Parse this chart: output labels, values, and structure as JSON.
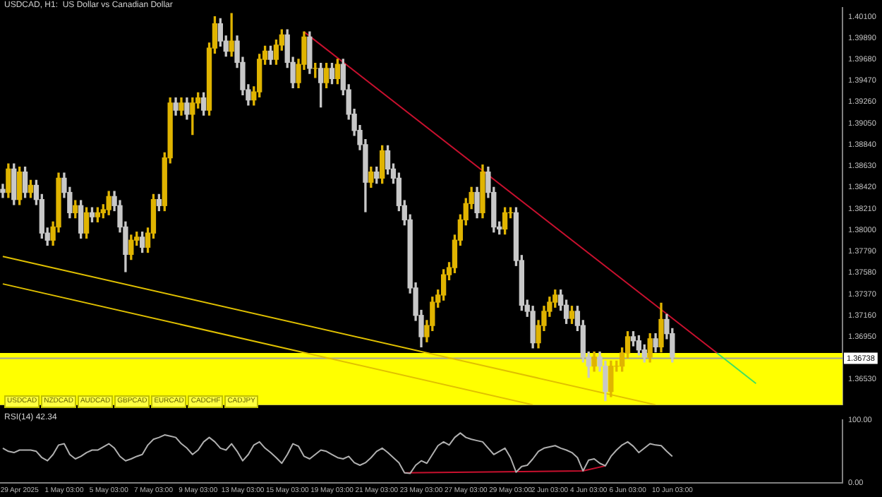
{
  "chart_data": [
    {
      "type": "candlestick",
      "title": "USDCAD, H1:  US Dollar vs Canadian Dollar",
      "categories": [
        null,
        null,
        null,
        null,
        null,
        null,
        null,
        null,
        null,
        null,
        null,
        null,
        null,
        null,
        null,
        null,
        null,
        null,
        null,
        null,
        null,
        null,
        null,
        null,
        null,
        null,
        null,
        null,
        null,
        null,
        null,
        null,
        null,
        null,
        null,
        null,
        null,
        null,
        null,
        null,
        null,
        null,
        null,
        null,
        null,
        null,
        null,
        null,
        null,
        null,
        null,
        null,
        null,
        null,
        null,
        null,
        null,
        null,
        null,
        null,
        null,
        null,
        null,
        null,
        null,
        null,
        null,
        null,
        null,
        null,
        null,
        null,
        null,
        null,
        null,
        null,
        null,
        null,
        null,
        null,
        null,
        null,
        null,
        null,
        null,
        null,
        null,
        null,
        null,
        null,
        null,
        null,
        null,
        null,
        null,
        null,
        null,
        null,
        null,
        null,
        null,
        null,
        null,
        null,
        null,
        null,
        null,
        null,
        null,
        null,
        null,
        null,
        null,
        null,
        null,
        null,
        null,
        null,
        null,
        null,
        null,
        null,
        null,
        null,
        null,
        null,
        null,
        null,
        null,
        null,
        null,
        null,
        null,
        null,
        null,
        null,
        null,
        null,
        null,
        null,
        null,
        null,
        null,
        null,
        null,
        null,
        null,
        null,
        null,
        null,
        null
      ],
      "ohlc": [
        [
          1.384,
          1.3845,
          1.3832,
          1.3837
        ],
        [
          1.3837,
          1.3865,
          1.3832,
          1.386
        ],
        [
          1.386,
          1.3865,
          1.3825,
          1.383
        ],
        [
          1.383,
          1.3862,
          1.3825,
          1.3857
        ],
        [
          1.3857,
          1.3862,
          1.3832,
          1.3837
        ],
        [
          1.3837,
          1.3849,
          1.3832,
          1.3844
        ],
        [
          1.3844,
          1.3849,
          1.3825,
          1.383
        ],
        [
          1.383,
          1.3835,
          1.3792,
          1.3797
        ],
        [
          1.3797,
          1.3802,
          1.3785,
          1.379
        ],
        [
          1.379,
          1.3808,
          1.3785,
          1.3803
        ],
        [
          1.3803,
          1.3856,
          1.3798,
          1.3851
        ],
        [
          1.3851,
          1.3856,
          1.3832,
          1.3837
        ],
        [
          1.3837,
          1.3842,
          1.3812,
          1.3817
        ],
        [
          1.3817,
          1.3829,
          1.3812,
          1.3824
        ],
        [
          1.3824,
          1.3829,
          1.3792,
          1.3797
        ],
        [
          1.3797,
          1.3822,
          1.3792,
          1.3817
        ],
        [
          1.3817,
          1.3822,
          1.3808,
          1.3813
        ],
        [
          1.3813,
          1.3822,
          1.3808,
          1.3817
        ],
        [
          1.3817,
          1.3825,
          1.3812,
          1.382
        ],
        [
          1.382,
          1.3838,
          1.3815,
          1.3833
        ],
        [
          1.3833,
          1.3838,
          1.3819,
          1.3824
        ],
        [
          1.3824,
          1.3829,
          1.3798,
          1.3803
        ],
        [
          1.3803,
          1.3808,
          1.3759,
          1.3776
        ],
        [
          1.3776,
          1.3795,
          1.3771,
          1.379
        ],
        [
          1.379,
          1.3798,
          1.3785,
          1.3793
        ],
        [
          1.3793,
          1.3798,
          1.3778,
          1.3783
        ],
        [
          1.3783,
          1.3802,
          1.3778,
          1.3797
        ],
        [
          1.3797,
          1.3835,
          1.3792,
          1.383
        ],
        [
          1.383,
          1.3835,
          1.3819,
          1.3824
        ],
        [
          1.3824,
          1.3876,
          1.3819,
          1.3871
        ],
        [
          1.3871,
          1.393,
          1.3866,
          1.3925
        ],
        [
          1.3925,
          1.393,
          1.3913,
          1.3918
        ],
        [
          1.3918,
          1.393,
          1.3913,
          1.3925
        ],
        [
          1.3925,
          1.393,
          1.3909,
          1.3914
        ],
        [
          1.3914,
          1.393,
          1.3894,
          1.3925
        ],
        [
          1.3925,
          1.3935,
          1.392,
          1.393
        ],
        [
          1.393,
          1.3935,
          1.3913,
          1.3918
        ],
        [
          1.3918,
          1.3984,
          1.3913,
          1.3979
        ],
        [
          1.3979,
          1.401,
          1.3974,
          1.4003
        ],
        [
          1.4003,
          1.4008,
          1.3981,
          1.3986
        ],
        [
          1.3986,
          1.3991,
          1.3971,
          1.3976
        ],
        [
          1.3976,
          1.4013,
          1.3971,
          1.3986
        ],
        [
          1.3986,
          1.3991,
          1.396,
          1.3965
        ],
        [
          1.3965,
          1.397,
          1.3933,
          1.3938
        ],
        [
          1.3938,
          1.3943,
          1.3923,
          1.3928
        ],
        [
          1.3928,
          1.3941,
          1.3923,
          1.3936
        ],
        [
          1.3936,
          1.3973,
          1.3931,
          1.3968
        ],
        [
          1.3968,
          1.3981,
          1.3963,
          1.3976
        ],
        [
          1.3976,
          1.3981,
          1.3963,
          1.3968
        ],
        [
          1.3968,
          1.3987,
          1.3963,
          1.3982
        ],
        [
          1.3982,
          1.3997,
          1.3977,
          1.3992
        ],
        [
          1.3992,
          1.3997,
          1.396,
          1.3965
        ],
        [
          1.3965,
          1.397,
          1.394,
          1.3945
        ],
        [
          1.3945,
          1.3968,
          1.394,
          1.3963
        ],
        [
          1.3963,
          1.3995,
          1.3958,
          1.399
        ],
        [
          1.399,
          1.3995,
          1.3954,
          1.3959
        ],
        [
          1.3959,
          1.3964,
          1.395,
          1.3959
        ],
        [
          1.3959,
          1.3964,
          1.3921,
          1.3945
        ],
        [
          1.3945,
          1.3964,
          1.394,
          1.3959
        ],
        [
          1.3959,
          1.3964,
          1.3944,
          1.3949
        ],
        [
          1.3949,
          1.3968,
          1.3944,
          1.3963
        ],
        [
          1.3963,
          1.3968,
          1.3933,
          1.3938
        ],
        [
          1.3938,
          1.3943,
          1.3909,
          1.3914
        ],
        [
          1.3914,
          1.3919,
          1.3893,
          1.3898
        ],
        [
          1.3898,
          1.3903,
          1.3879,
          1.3884
        ],
        [
          1.3884,
          1.3889,
          1.3818,
          1.3847
        ],
        [
          1.3847,
          1.3862,
          1.3842,
          1.3857
        ],
        [
          1.3857,
          1.3862,
          1.3846,
          1.3851
        ],
        [
          1.3851,
          1.3883,
          1.3846,
          1.3878
        ],
        [
          1.3878,
          1.3883,
          1.3855,
          1.386
        ],
        [
          1.386,
          1.3865,
          1.3846,
          1.3851
        ],
        [
          1.3851,
          1.3856,
          1.3819,
          1.3824
        ],
        [
          1.3824,
          1.3829,
          1.3805,
          1.381
        ],
        [
          1.381,
          1.3815,
          1.3738,
          1.3743
        ],
        [
          1.3743,
          1.3748,
          1.3711,
          1.3716
        ],
        [
          1.3716,
          1.3721,
          1.3685,
          1.3695
        ],
        [
          1.3695,
          1.3711,
          1.369,
          1.3706
        ],
        [
          1.3706,
          1.3734,
          1.3701,
          1.3729
        ],
        [
          1.3729,
          1.3741,
          1.3724,
          1.3736
        ],
        [
          1.3736,
          1.3761,
          1.3731,
          1.3756
        ],
        [
          1.3756,
          1.3768,
          1.3751,
          1.3763
        ],
        [
          1.3763,
          1.3795,
          1.3758,
          1.379
        ],
        [
          1.379,
          1.3815,
          1.3785,
          1.381
        ],
        [
          1.381,
          1.3831,
          1.3805,
          1.3826
        ],
        [
          1.3826,
          1.3842,
          1.3821,
          1.3837
        ],
        [
          1.3837,
          1.3842,
          1.3812,
          1.3817
        ],
        [
          1.3817,
          1.3864,
          1.3812,
          1.3857
        ],
        [
          1.3857,
          1.3862,
          1.3832,
          1.3837
        ],
        [
          1.3837,
          1.3842,
          1.3798,
          1.3803
        ],
        [
          1.3803,
          1.3808,
          1.3796,
          1.3801
        ],
        [
          1.3801,
          1.3822,
          1.3796,
          1.3817
        ],
        [
          1.3817,
          1.3822,
          1.3812,
          1.3817
        ],
        [
          1.3817,
          1.3822,
          1.3765,
          1.377
        ],
        [
          1.377,
          1.3775,
          1.3721,
          1.3726
        ],
        [
          1.3726,
          1.3731,
          1.3715,
          1.372
        ],
        [
          1.372,
          1.3725,
          1.3684,
          1.3689
        ],
        [
          1.3689,
          1.3711,
          1.3684,
          1.3706
        ],
        [
          1.3706,
          1.3725,
          1.3701,
          1.372
        ],
        [
          1.372,
          1.3734,
          1.3715,
          1.3729
        ],
        [
          1.3729,
          1.3741,
          1.3724,
          1.3736
        ],
        [
          1.3736,
          1.3741,
          1.3721,
          1.3726
        ],
        [
          1.3726,
          1.3731,
          1.3708,
          1.3713
        ],
        [
          1.3713,
          1.3725,
          1.3708,
          1.372
        ],
        [
          1.372,
          1.3725,
          1.3701,
          1.3706
        ],
        [
          1.3706,
          1.3711,
          1.367,
          1.3675
        ],
        [
          1.3675,
          1.368,
          1.3655,
          1.3666
        ],
        [
          1.3666,
          1.368,
          1.3661,
          1.3675
        ],
        [
          1.3675,
          1.368,
          1.3661,
          1.3666
        ],
        [
          1.3666,
          1.3671,
          1.3632,
          1.3641
        ],
        [
          1.3641,
          1.3671,
          1.3636,
          1.3666
        ],
        [
          1.3666,
          1.3671,
          1.3661,
          1.3666
        ],
        [
          1.3666,
          1.3684,
          1.3661,
          1.3679
        ],
        [
          1.3679,
          1.37,
          1.3674,
          1.3695
        ],
        [
          1.3695,
          1.37,
          1.3686,
          1.3691
        ],
        [
          1.3691,
          1.3696,
          1.3677,
          1.3682
        ],
        [
          1.3682,
          1.3687,
          1.367,
          1.3675
        ],
        [
          1.3675,
          1.3698,
          1.367,
          1.3693
        ],
        [
          1.3693,
          1.3698,
          1.368,
          1.3685
        ],
        [
          1.3685,
          1.3728,
          1.368,
          1.3712
        ],
        [
          1.3712,
          1.3717,
          1.3693,
          1.3698
        ],
        [
          1.3698,
          1.3703,
          1.367,
          1.3675
        ],
        null,
        null,
        null,
        null,
        null,
        null,
        null,
        null,
        null,
        null,
        null,
        null,
        null,
        null,
        null,
        null,
        null,
        null,
        null,
        null,
        null,
        null,
        null,
        null,
        null,
        null,
        null,
        null,
        null,
        null
      ],
      "colors": [
        "#c8c8c8",
        "#e0b400",
        "#c8c8c8",
        "#e0b400",
        "#c8c8c8",
        "#e0b400",
        "#c8c8c8",
        "#c8c8c8",
        "#c8c8c8",
        "#e0b400",
        "#e0b400",
        "#c8c8c8",
        "#c8c8c8",
        "#e0b400",
        "#c8c8c8",
        "#e0b400",
        "#c8c8c8",
        "#e0b400",
        "#e0b400",
        "#e0b400",
        "#c8c8c8",
        "#c8c8c8",
        "#c8c8c8",
        "#e0b400",
        "#e0b400",
        "#c8c8c8",
        "#e0b400",
        "#e0b400",
        "#c8c8c8",
        "#e0b400",
        "#e0b400",
        "#c8c8c8",
        "#e0b400",
        "#c8c8c8",
        "#e0b400",
        "#e0b400",
        "#c8c8c8",
        "#e0b400",
        "#e0b400",
        "#c8c8c8",
        "#c8c8c8",
        "#e0b400",
        "#c8c8c8",
        "#c8c8c8",
        "#c8c8c8",
        "#e0b400",
        "#e0b400",
        "#e0b400",
        "#c8c8c8",
        "#e0b400",
        "#e0b400",
        "#c8c8c8",
        "#c8c8c8",
        "#e0b400",
        "#e0b400",
        "#c8c8c8",
        "#e0b400",
        "#c8c8c8",
        "#e0b400",
        "#c8c8c8",
        "#e0b400",
        "#c8c8c8",
        "#c8c8c8",
        "#c8c8c8",
        "#c8c8c8",
        "#c8c8c8",
        "#e0b400",
        "#c8c8c8",
        "#e0b400",
        "#c8c8c8",
        "#c8c8c8",
        "#c8c8c8",
        "#c8c8c8",
        "#c8c8c8",
        "#c8c8c8",
        "#c8c8c8",
        "#e0b400",
        "#e0b400",
        "#e0b400",
        "#e0b400",
        "#e0b400",
        "#e0b400",
        "#e0b400",
        "#e0b400",
        "#e0b400",
        "#c8c8c8",
        "#e0b400",
        "#c8c8c8",
        "#c8c8c8",
        "#c8c8c8",
        "#e0b400",
        "#e0b400",
        "#c8c8c8",
        "#c8c8c8",
        "#c8c8c8",
        "#c8c8c8",
        "#e0b400",
        "#e0b400",
        "#e0b400",
        "#e0b400",
        "#c8c8c8",
        "#c8c8c8",
        "#e0b400",
        "#c8c8c8",
        "#c8c8c8",
        "#c8c8c8",
        "#e0b400",
        "#c8c8c8",
        "#c8c8c8",
        "#e0b400",
        "#e0b400",
        "#e0b400",
        "#e0b400",
        "#c8c8c8",
        "#c8c8c8",
        "#c8c8c8",
        "#e0b400",
        "#c8c8c8",
        "#e0b400",
        "#c8c8c8",
        "#c8c8c8",
        null,
        null,
        null,
        null,
        null,
        null,
        null,
        null,
        null,
        null,
        null,
        null,
        null,
        null,
        null,
        null,
        null,
        null,
        null,
        null,
        null,
        null,
        null,
        null,
        null,
        null,
        null,
        null,
        null,
        null
      ],
      "series": [
        {
          "type": "line",
          "color": "#c8102e",
          "values": [
            null,
            null,
            null,
            null,
            null,
            null,
            null,
            null,
            null,
            null,
            null,
            null,
            null,
            null,
            null,
            null,
            null,
            null,
            null,
            null,
            null,
            null,
            null,
            null,
            null,
            null,
            null,
            null,
            null,
            null,
            null,
            null,
            null,
            null,
            null,
            null,
            null,
            null,
            null,
            null,
            null,
            null,
            null,
            null,
            null,
            null,
            null,
            null,
            null,
            null,
            null,
            null,
            null,
            null,
            1.3995,
            null,
            null,
            null,
            null,
            null,
            null,
            null,
            null,
            null,
            null,
            null,
            null,
            null,
            null,
            null,
            null,
            null,
            null,
            null,
            null,
            null,
            null,
            null,
            null,
            null,
            null,
            null,
            null,
            null,
            null,
            null,
            null,
            null,
            null,
            null,
            null,
            null,
            null,
            null,
            null,
            null,
            null,
            null,
            null,
            null,
            null,
            null,
            null,
            null,
            null,
            null,
            null,
            null,
            null,
            null,
            null,
            null,
            null,
            null,
            null,
            null,
            null,
            null,
            null,
            null,
            null,
            null,
            null,
            null,
            null,
            null,
            null,
            null,
            1.3679,
            null,
            null,
            null,
            null,
            null,
            null,
            null,
            null,
            null,
            null,
            null,
            null,
            null,
            null,
            null,
            null,
            null,
            null,
            null,
            null,
            null,
            null
          ]
        },
        {
          "type": "line",
          "color": "#40e060",
          "values": [
            null,
            null,
            null,
            null,
            null,
            null,
            null,
            null,
            null,
            null,
            null,
            null,
            null,
            null,
            null,
            null,
            null,
            null,
            null,
            null,
            null,
            null,
            null,
            null,
            null,
            null,
            null,
            null,
            null,
            null,
            null,
            null,
            null,
            null,
            null,
            null,
            null,
            null,
            null,
            null,
            null,
            null,
            null,
            null,
            null,
            null,
            null,
            null,
            null,
            null,
            null,
            null,
            null,
            null,
            null,
            null,
            null,
            null,
            null,
            null,
            null,
            null,
            null,
            null,
            null,
            null,
            null,
            null,
            null,
            null,
            null,
            null,
            null,
            null,
            null,
            null,
            null,
            null,
            null,
            null,
            null,
            null,
            null,
            null,
            null,
            null,
            null,
            null,
            null,
            null,
            null,
            null,
            null,
            null,
            null,
            null,
            null,
            null,
            null,
            null,
            null,
            null,
            null,
            null,
            null,
            null,
            null,
            null,
            null,
            null,
            null,
            null,
            null,
            null,
            null,
            null,
            null,
            null,
            null,
            null,
            null,
            null,
            null,
            null,
            null,
            null,
            null,
            null,
            1.3679,
            null,
            null,
            null,
            null,
            null,
            null,
            1.3649,
            null,
            null,
            null,
            null,
            null,
            null,
            null,
            null,
            null,
            null,
            null,
            null,
            null,
            null,
            null
          ]
        },
        {
          "type": "line",
          "color": "#e0c000",
          "values": [
            1.3774,
            null,
            null,
            null,
            null,
            null,
            null,
            null,
            null,
            null,
            null,
            null,
            null,
            null,
            null,
            null,
            null,
            null,
            null,
            null,
            null,
            null,
            null,
            null,
            null,
            null,
            null,
            null,
            null,
            null,
            null,
            null,
            null,
            null,
            null,
            null,
            null,
            null,
            null,
            null,
            null,
            null,
            null,
            null,
            null,
            null,
            null,
            null,
            null,
            null,
            null,
            null,
            null,
            null,
            null,
            null,
            null,
            null,
            null,
            null,
            null,
            null,
            null,
            null,
            null,
            null,
            null,
            null,
            null,
            null,
            null,
            null,
            null,
            null,
            null,
            null,
            null,
            null,
            null,
            null,
            null,
            null,
            null,
            null,
            null,
            null,
            null,
            null,
            null,
            null,
            null,
            null,
            null,
            null,
            null,
            null,
            null,
            null,
            null,
            null,
            null,
            null,
            null,
            null,
            null,
            null,
            null,
            null,
            null,
            null,
            null,
            null,
            null,
            null,
            null,
            null,
            null,
            1.3628,
            null,
            null,
            null,
            null,
            null,
            null,
            null,
            null,
            null,
            null,
            null,
            null,
            null,
            null,
            null,
            null,
            null,
            null,
            null,
            null,
            null,
            null,
            null,
            null,
            null,
            null,
            null,
            null,
            null,
            null,
            null,
            null,
            null
          ]
        },
        {
          "type": "line",
          "color": "#e0c000",
          "values": [
            1.3747,
            null,
            null,
            null,
            null,
            null,
            null,
            null,
            null,
            null,
            null,
            null,
            null,
            null,
            null,
            null,
            null,
            null,
            null,
            null,
            null,
            null,
            null,
            null,
            null,
            null,
            null,
            null,
            null,
            null,
            null,
            null,
            null,
            null,
            null,
            null,
            null,
            null,
            null,
            null,
            null,
            null,
            null,
            null,
            null,
            null,
            null,
            null,
            null,
            null,
            null,
            null,
            null,
            null,
            null,
            null,
            null,
            null,
            null,
            null,
            null,
            null,
            null,
            null,
            null,
            null,
            null,
            null,
            null,
            null,
            null,
            null,
            null,
            null,
            null,
            null,
            null,
            null,
            null,
            null,
            null,
            null,
            null,
            null,
            null,
            null,
            null,
            null,
            null,
            null,
            null,
            null,
            null,
            null,
            null,
            1.3628,
            null,
            null,
            null,
            null,
            null,
            null,
            null,
            null,
            null,
            null,
            null,
            null,
            null,
            null,
            null,
            null,
            null,
            null,
            null,
            null,
            null,
            null,
            null,
            null,
            null,
            null,
            null,
            null,
            null,
            null,
            null,
            null,
            null,
            null,
            null,
            null,
            null,
            null,
            null,
            null,
            null,
            null,
            null,
            null,
            null,
            null,
            null,
            null,
            null,
            null,
            null,
            null,
            null,
            null,
            null
          ]
        }
      ],
      "ylim": [
        1.3628,
        1.4019
      ],
      "yticks": [
        {
          "value": 1.401,
          "label": "1.40100"
        },
        {
          "value": 1.3989,
          "label": "1.39890"
        },
        {
          "value": 1.3968,
          "label": "1.39680"
        },
        {
          "value": 1.3947,
          "label": "1.39470"
        },
        {
          "value": 1.3926,
          "label": "1.39260"
        },
        {
          "value": 1.3905,
          "label": "1.39050"
        },
        {
          "value": 1.3884,
          "label": "1.38840"
        },
        {
          "value": 1.3863,
          "label": "1.38630"
        },
        {
          "value": 1.3842,
          "label": "1.38420"
        },
        {
          "value": 1.3821,
          "label": "1.38210"
        },
        {
          "value": 1.38,
          "label": "1.38000"
        },
        {
          "value": 1.3779,
          "label": "1.37790"
        },
        {
          "value": 1.3758,
          "label": "1.37580"
        },
        {
          "value": 1.3737,
          "label": "1.37370"
        },
        {
          "value": 1.3716,
          "label": "1.37160"
        },
        {
          "value": 1.3695,
          "label": "1.36950"
        },
        {
          "value": 1.3653,
          "label": "1.36530"
        }
      ],
      "bands": [
        {
          "axis": "y",
          "from": 1.3628,
          "to": 1.3679,
          "color": "#ffff00"
        }
      ],
      "ref_lines": [
        {
          "axis": "y",
          "value": 1.36738,
          "label": "1.36738",
          "color": "#a0a0a0"
        }
      ],
      "annotations": [
        "USDCAD",
        "NZDCAD",
        "AUDCAD",
        "GBPCAD",
        "EURCAD",
        "CADCHF",
        "CADJPY"
      ],
      "grid": false,
      "legend": false
    },
    {
      "type": "line",
      "title": "RSI(14) 42.34",
      "categories": [
        null,
        null,
        null,
        "29 Apr 2025",
        null,
        null,
        null,
        null,
        null,
        null,
        null,
        "1 May 03:00",
        null,
        null,
        null,
        null,
        null,
        null,
        null,
        "5 May 03:00",
        null,
        null,
        null,
        null,
        null,
        null,
        null,
        "7 May 03:00",
        null,
        null,
        null,
        null,
        null,
        null,
        null,
        "9 May 03:00",
        null,
        null,
        null,
        null,
        null,
        null,
        null,
        "13 May 03:00",
        null,
        null,
        null,
        null,
        null,
        null,
        null,
        "15 May 03:00",
        null,
        null,
        null,
        null,
        null,
        null,
        null,
        "19 May 03:00",
        null,
        null,
        null,
        null,
        null,
        null,
        null,
        "21 May 03:00",
        null,
        null,
        null,
        null,
        null,
        null,
        null,
        "23 May 03:00",
        null,
        null,
        null,
        null,
        null,
        null,
        null,
        "27 May 03:00",
        null,
        null,
        null,
        null,
        null,
        null,
        null,
        "29 May 03:00",
        null,
        null,
        null,
        null,
        null,
        null,
        "2 Jun 03:00",
        null,
        null,
        null,
        null,
        null,
        null,
        "4 Jun 03:00",
        null,
        null,
        null,
        null,
        null,
        null,
        "6 Jun 03:00",
        null,
        null,
        null,
        null,
        null,
        null,
        null,
        "10 Jun 03:00",
        null,
        null,
        null,
        null,
        null,
        null,
        null,
        null,
        null,
        null,
        null,
        null,
        null,
        null,
        null,
        null,
        null,
        null,
        null,
        null,
        null,
        null,
        null,
        null,
        null,
        null,
        null,
        null,
        null,
        null
      ],
      "series": [
        {
          "color": "#b0b0b0",
          "values": [
            55,
            50,
            48,
            52,
            52,
            52,
            50,
            40,
            35,
            45,
            60,
            62,
            45,
            38,
            42,
            48,
            52,
            52,
            57,
            62,
            55,
            42,
            35,
            38,
            42,
            45,
            60,
            69,
            72,
            76,
            74,
            72,
            62,
            55,
            45,
            52,
            65,
            72,
            65,
            55,
            52,
            62,
            50,
            35,
            45,
            60,
            65,
            55,
            48,
            40,
            31,
            45,
            62,
            58,
            42,
            38,
            45,
            52,
            50,
            45,
            40,
            38,
            42,
            32,
            28,
            32,
            40,
            50,
            55,
            48,
            40,
            32,
            16,
            15,
            28,
            35,
            31,
            45,
            59,
            65,
            60,
            72,
            79,
            72,
            69,
            67,
            65,
            55,
            45,
            50,
            55,
            40,
            17,
            26,
            28,
            38,
            50,
            55,
            57,
            59,
            55,
            52,
            48,
            40,
            19,
            36,
            38,
            31,
            27,
            42,
            52,
            60,
            65,
            58,
            48,
            55,
            62,
            60,
            59,
            50,
            42,
            null,
            null,
            null,
            null,
            null,
            null,
            null,
            null,
            null,
            null,
            null,
            null,
            null,
            null,
            null,
            null,
            null,
            null,
            null,
            null,
            null,
            null,
            null,
            null,
            null,
            null,
            null,
            null,
            null,
            null
          ]
        },
        {
          "color": "#c8102e",
          "values": [
            null,
            null,
            null,
            null,
            null,
            null,
            null,
            null,
            null,
            null,
            null,
            null,
            null,
            null,
            null,
            null,
            null,
            null,
            null,
            null,
            null,
            null,
            null,
            null,
            null,
            null,
            null,
            null,
            null,
            null,
            null,
            null,
            null,
            null,
            null,
            null,
            null,
            null,
            null,
            null,
            null,
            null,
            null,
            null,
            null,
            null,
            null,
            null,
            null,
            null,
            null,
            null,
            null,
            null,
            null,
            null,
            null,
            null,
            null,
            null,
            null,
            null,
            null,
            null,
            null,
            null,
            null,
            null,
            null,
            null,
            null,
            null,
            16,
            null,
            null,
            null,
            null,
            null,
            null,
            null,
            null,
            null,
            null,
            null,
            null,
            null,
            null,
            null,
            null,
            null,
            null,
            null,
            null,
            null,
            null,
            null,
            null,
            null,
            null,
            null,
            null,
            null,
            null,
            null,
            19,
            null,
            null,
            null,
            27,
            null,
            null,
            null,
            null,
            null,
            null,
            null,
            null,
            null,
            null,
            null,
            null,
            null,
            null,
            null,
            null,
            null,
            null,
            null,
            null,
            null,
            null,
            null,
            null,
            null,
            null,
            null,
            null,
            null,
            null,
            null,
            null,
            null,
            null,
            null,
            null,
            null,
            null,
            null,
            null,
            null,
            null
          ]
        }
      ],
      "ylim": [
        0,
        100
      ],
      "yticks": [
        {
          "value": 100,
          "label": "100.00"
        },
        {
          "value": 0,
          "label": "0.00"
        }
      ],
      "grid": false,
      "legend": false
    }
  ]
}
